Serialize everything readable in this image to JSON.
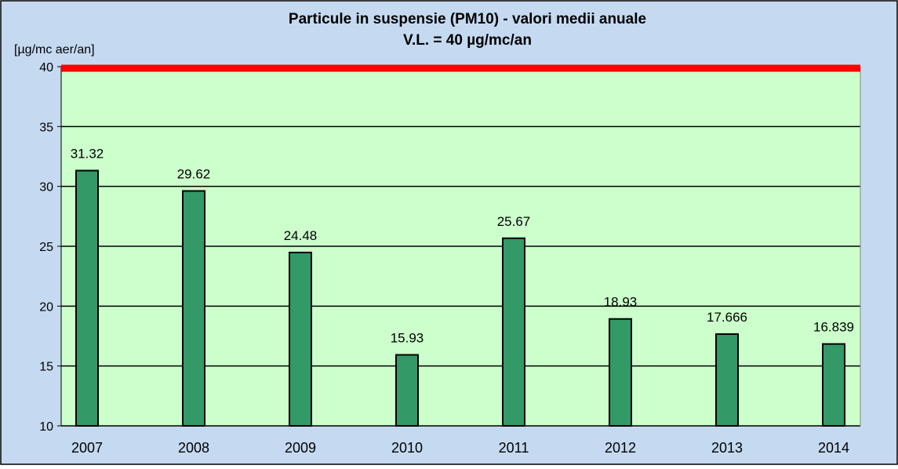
{
  "chart_data": {
    "type": "bar",
    "title": "Particule in suspensie (PM10) - valori medii anuale",
    "subtitle": "V.L. = 40 µg/mc/an",
    "y_label": "[µg/mc aer/an]",
    "categories": [
      "2007",
      "2008",
      "2009",
      "2010",
      "2011",
      "2012",
      "2013",
      "2014"
    ],
    "values": [
      31.32,
      29.62,
      24.48,
      15.93,
      25.67,
      18.93,
      17.666,
      16.839
    ],
    "color": "#339966",
    "limit": 40,
    "limit_color": "#ff0000",
    "ylim": [
      10,
      40
    ],
    "yticks": [
      10,
      15,
      20,
      25,
      30,
      35,
      40
    ],
    "grid": true
  }
}
